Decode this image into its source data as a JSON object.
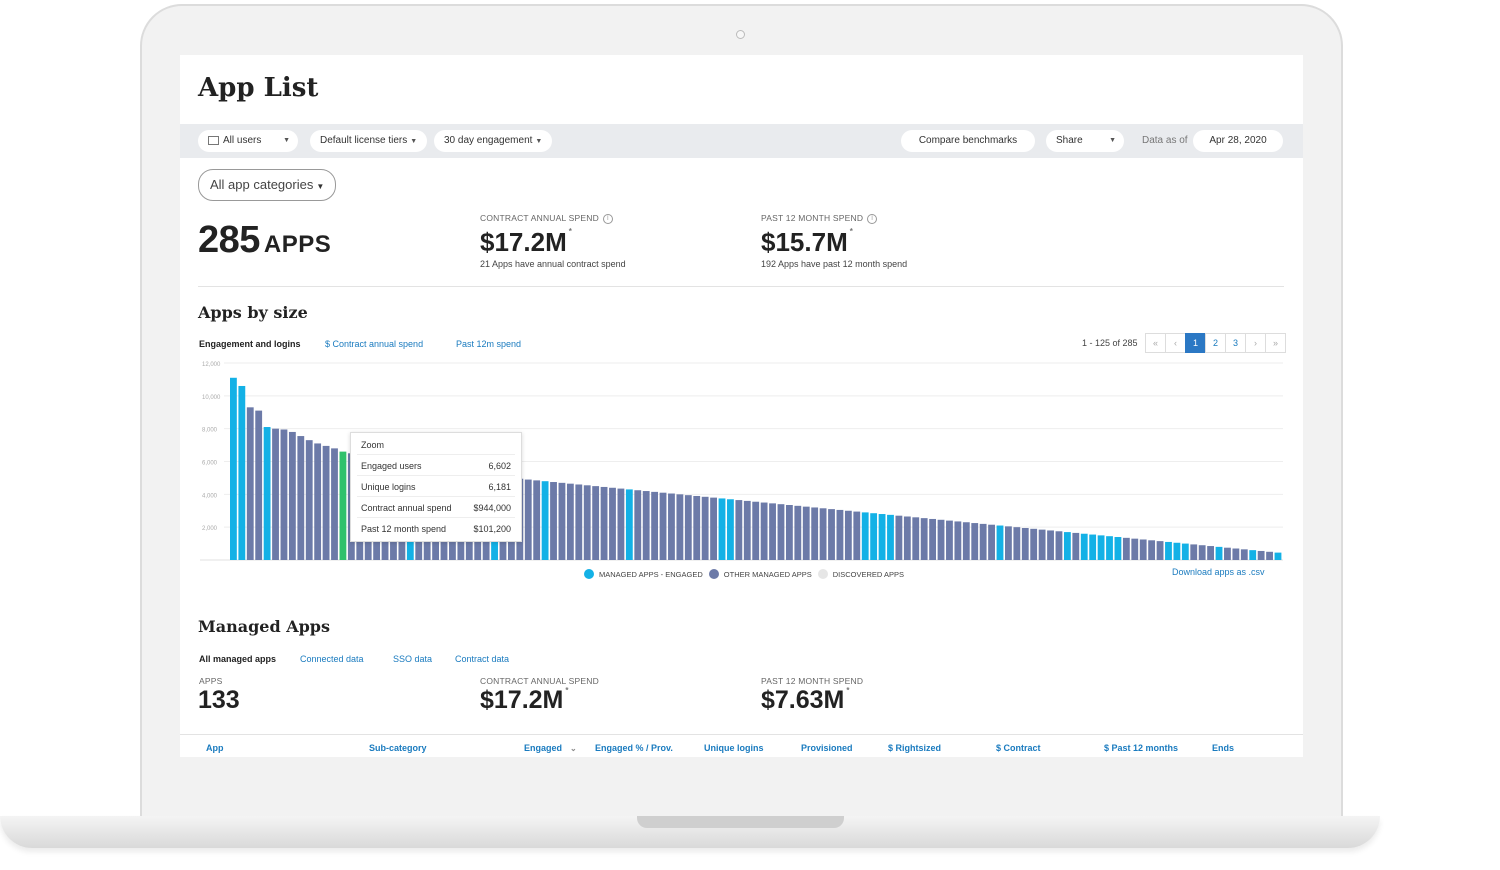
{
  "page": {
    "title": "App List"
  },
  "filters": {
    "users": "All users",
    "license_tiers": "Default license tiers",
    "engagement": "30 day engagement",
    "compare": "Compare benchmarks",
    "share": "Share",
    "data_as_of_label": "Data as of",
    "data_as_of_value": "Apr 28, 2020"
  },
  "category_filter": "All app categories",
  "summary": {
    "apps_count": "285",
    "apps_unit": "APPS",
    "contract_label": "CONTRACT ANNUAL SPEND",
    "contract_value": "$17.2M",
    "contract_sub": "21 Apps have annual contract spend",
    "past12_label": "PAST 12 MONTH SPEND",
    "past12_value": "$15.7M",
    "past12_sub": "192 Apps have past 12 month spend",
    "asterisk": "*"
  },
  "apps_by_size": {
    "title": "Apps by size",
    "tabs": [
      "Engagement and logins",
      "$ Contract annual spend",
      "Past 12m spend"
    ],
    "pager_info": "1 - 125 of 285",
    "pages": [
      "1",
      "2",
      "3"
    ],
    "download": "Download apps as .csv",
    "legend": [
      "MANAGED APPS - ENGAGED",
      "OTHER MANAGED APPS",
      "DISCOVERED APPS"
    ],
    "tooltip": {
      "title": "Zoom",
      "rows": [
        {
          "label": "Engaged users",
          "value": "6,602"
        },
        {
          "label": "Unique logins",
          "value": "6,181"
        },
        {
          "label": "Contract annual spend",
          "value": "$944,000"
        },
        {
          "label": "Past 12 month spend",
          "value": "$101,200"
        }
      ]
    }
  },
  "colors": {
    "managed_engaged": "#13b1e6",
    "other_managed": "#6c7aa8",
    "discovered": "#e6e6e6",
    "highlight": "#2fc16b",
    "link": "#1a7bbf"
  },
  "chart_data": {
    "type": "bar",
    "title": "",
    "ylim": [
      0,
      12000
    ],
    "yticks": [
      "12,000",
      "10,000",
      "8,000",
      "6,000",
      "4,000",
      "2,000"
    ],
    "grid": true,
    "values": [
      11100,
      10600,
      9300,
      9100,
      8100,
      8000,
      7950,
      7800,
      7550,
      7300,
      7100,
      6950,
      6800,
      6602,
      6500,
      6350,
      6200,
      6100,
      5950,
      5800,
      5700,
      5600,
      5550,
      5500,
      5450,
      5400,
      5350,
      5300,
      5250,
      5200,
      5150,
      5100,
      5050,
      5000,
      4950,
      4900,
      4850,
      4800,
      4750,
      4700,
      4650,
      4600,
      4550,
      4500,
      4450,
      4400,
      4350,
      4300,
      4250,
      4200,
      4150,
      4100,
      4050,
      4000,
      3950,
      3900,
      3850,
      3800,
      3750,
      3700,
      3650,
      3600,
      3550,
      3500,
      3450,
      3400,
      3350,
      3300,
      3250,
      3200,
      3150,
      3100,
      3050,
      3000,
      2950,
      2900,
      2850,
      2800,
      2750,
      2700,
      2650,
      2600,
      2550,
      2500,
      2450,
      2400,
      2350,
      2300,
      2250,
      2200,
      2150,
      2100,
      2050,
      2000,
      1950,
      1900,
      1850,
      1800,
      1750,
      1700,
      1650,
      1600,
      1550,
      1500,
      1450,
      1400,
      1350,
      1300,
      1250,
      1200,
      1150,
      1100,
      1050,
      1000,
      950,
      900,
      850,
      800,
      750,
      700,
      650,
      600,
      550,
      500,
      450
    ],
    "series_type": [
      "e",
      "e",
      "o",
      "o",
      "e",
      "o",
      "o",
      "o",
      "o",
      "o",
      "o",
      "o",
      "o",
      "h",
      "o",
      "o",
      "o",
      "o",
      "o",
      "o",
      "o",
      "e",
      "o",
      "o",
      "o",
      "o",
      "o",
      "o",
      "o",
      "o",
      "o",
      "e",
      "o",
      "o",
      "o",
      "o",
      "o",
      "e",
      "o",
      "o",
      "o",
      "o",
      "o",
      "o",
      "o",
      "o",
      "o",
      "e",
      "o",
      "o",
      "o",
      "o",
      "o",
      "o",
      "o",
      "o",
      "o",
      "o",
      "e",
      "e",
      "o",
      "o",
      "o",
      "o",
      "o",
      "o",
      "o",
      "o",
      "o",
      "o",
      "o",
      "o",
      "o",
      "o",
      "o",
      "e",
      "e",
      "e",
      "e",
      "o",
      "o",
      "o",
      "o",
      "o",
      "o",
      "o",
      "o",
      "o",
      "o",
      "o",
      "o",
      "e",
      "o",
      "o",
      "o",
      "o",
      "o",
      "o",
      "o",
      "e",
      "o",
      "e",
      "e",
      "e",
      "e",
      "e",
      "o",
      "o",
      "o",
      "o",
      "o",
      "e",
      "e",
      "e",
      "o",
      "o",
      "o",
      "e",
      "o",
      "o",
      "o",
      "e",
      "o",
      "o",
      "e"
    ]
  },
  "managed_apps": {
    "title": "Managed Apps",
    "tabs": [
      "All managed apps",
      "Connected data",
      "SSO data",
      "Contract data"
    ],
    "apps_label": "APPS",
    "apps_value": "133",
    "contract_label": "CONTRACT ANNUAL SPEND",
    "contract_value": "$17.2M",
    "past12_label": "PAST 12 MONTH SPEND",
    "past12_value": "$7.63M",
    "columns": [
      "App",
      "Sub-category",
      "Engaged",
      "Engaged % / Prov.",
      "Unique logins",
      "Provisioned",
      "$ Rightsized",
      "$ Contract",
      "$ Past 12 months",
      "Ends"
    ]
  }
}
